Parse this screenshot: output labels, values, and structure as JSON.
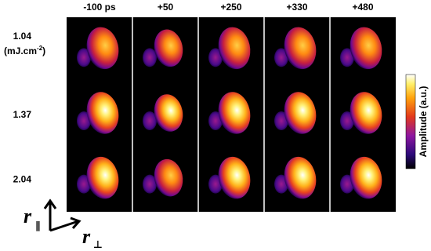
{
  "figure": {
    "columns": [
      "-100 ps",
      "+50",
      "+250",
      "+330",
      "+480"
    ],
    "rows": [
      {
        "label": "1.04",
        "unit_base": "(mJ.cm",
        "unit_exponent": "-2",
        "unit_close": ")"
      },
      {
        "label": "1.37"
      },
      {
        "label": "2.04"
      }
    ],
    "colorbar_label": "Amplitude (a.u.)",
    "axes": {
      "vertical": {
        "symbol": "r",
        "subscript": "∥"
      },
      "horizontal": {
        "symbol": "r",
        "subscript": "⊥"
      }
    }
  }
}
